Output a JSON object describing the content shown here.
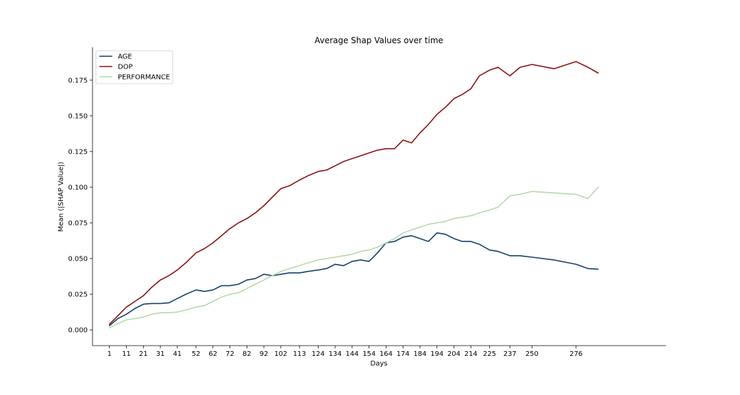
{
  "chart_data": {
    "type": "line",
    "title": "Average Shap Values over time",
    "xlabel": "Days",
    "ylabel": "Mean (|SHAP Value|)",
    "ylim": [
      -0.011,
      0.198
    ],
    "xlim": [
      -9,
      329
    ],
    "grid": false,
    "legend_position": "top-left",
    "xticks": [
      1,
      11,
      21,
      31,
      41,
      52,
      62,
      72,
      82,
      92,
      102,
      113,
      124,
      134,
      144,
      154,
      164,
      174,
      184,
      194,
      204,
      214,
      225,
      237,
      250,
      276
    ],
    "xtick_labels": [
      "1",
      "11",
      "21",
      "31",
      "41",
      "52",
      "62",
      "72",
      "82",
      "92",
      "102",
      "113",
      "124",
      "134",
      "144",
      "154",
      "164",
      "174",
      "184",
      "194",
      "204",
      "214",
      "225",
      "237",
      "250",
      "276"
    ],
    "yticks": [
      0.0,
      0.025,
      0.05,
      0.075,
      0.1,
      0.125,
      0.15,
      0.175
    ],
    "ytick_labels": [
      "0.000",
      "0.025",
      "0.050",
      "0.075",
      "0.100",
      "0.125",
      "0.150",
      "0.175"
    ],
    "x": [
      1,
      6,
      11,
      16,
      21,
      26,
      31,
      36,
      41,
      46,
      52,
      57,
      62,
      67,
      72,
      77,
      82,
      87,
      92,
      97,
      102,
      107,
      113,
      118,
      124,
      129,
      134,
      139,
      144,
      149,
      154,
      159,
      164,
      169,
      174,
      179,
      184,
      189,
      194,
      199,
      204,
      209,
      214,
      219,
      225,
      230,
      237,
      243,
      250,
      263,
      276,
      283,
      289
    ],
    "series": [
      {
        "name": "AGE",
        "color": "#123d6b",
        "values": [
          0.003,
          0.008,
          0.011,
          0.015,
          0.018,
          0.0185,
          0.0185,
          0.019,
          0.022,
          0.025,
          0.028,
          0.027,
          0.028,
          0.031,
          0.031,
          0.032,
          0.035,
          0.036,
          0.039,
          0.038,
          0.039,
          0.04,
          0.04,
          0.041,
          0.042,
          0.043,
          0.046,
          0.045,
          0.048,
          0.049,
          0.048,
          0.054,
          0.061,
          0.062,
          0.065,
          0.066,
          0.064,
          0.062,
          0.068,
          0.067,
          0.064,
          0.062,
          0.062,
          0.06,
          0.056,
          0.055,
          0.052,
          0.052,
          0.051,
          0.049,
          0.046,
          0.043,
          0.0425
        ]
      },
      {
        "name": "DOP",
        "color": "#8b0d0d",
        "values": [
          0.004,
          0.01,
          0.016,
          0.02,
          0.024,
          0.03,
          0.035,
          0.038,
          0.042,
          0.047,
          0.054,
          0.057,
          0.061,
          0.066,
          0.071,
          0.075,
          0.078,
          0.082,
          0.087,
          0.093,
          0.099,
          0.101,
          0.105,
          0.108,
          0.111,
          0.112,
          0.115,
          0.118,
          0.12,
          0.122,
          0.124,
          0.126,
          0.127,
          0.127,
          0.133,
          0.131,
          0.138,
          0.144,
          0.151,
          0.156,
          0.162,
          0.165,
          0.169,
          0.178,
          0.182,
          0.184,
          0.178,
          0.184,
          0.186,
          0.183,
          0.188,
          0.184,
          0.18
        ]
      },
      {
        "name": "PERFORMANCE",
        "color": "#b5d9a6",
        "values": [
          0.0015,
          0.0045,
          0.007,
          0.008,
          0.009,
          0.011,
          0.012,
          0.012,
          0.0125,
          0.014,
          0.016,
          0.017,
          0.02,
          0.023,
          0.025,
          0.026,
          0.029,
          0.032,
          0.035,
          0.038,
          0.041,
          0.043,
          0.045,
          0.047,
          0.049,
          0.05,
          0.051,
          0.052,
          0.053,
          0.055,
          0.056,
          0.058,
          0.061,
          0.064,
          0.068,
          0.07,
          0.072,
          0.074,
          0.075,
          0.076,
          0.078,
          0.079,
          0.08,
          0.082,
          0.084,
          0.086,
          0.094,
          0.095,
          0.097,
          0.096,
          0.095,
          0.092,
          0.1
        ]
      }
    ]
  }
}
